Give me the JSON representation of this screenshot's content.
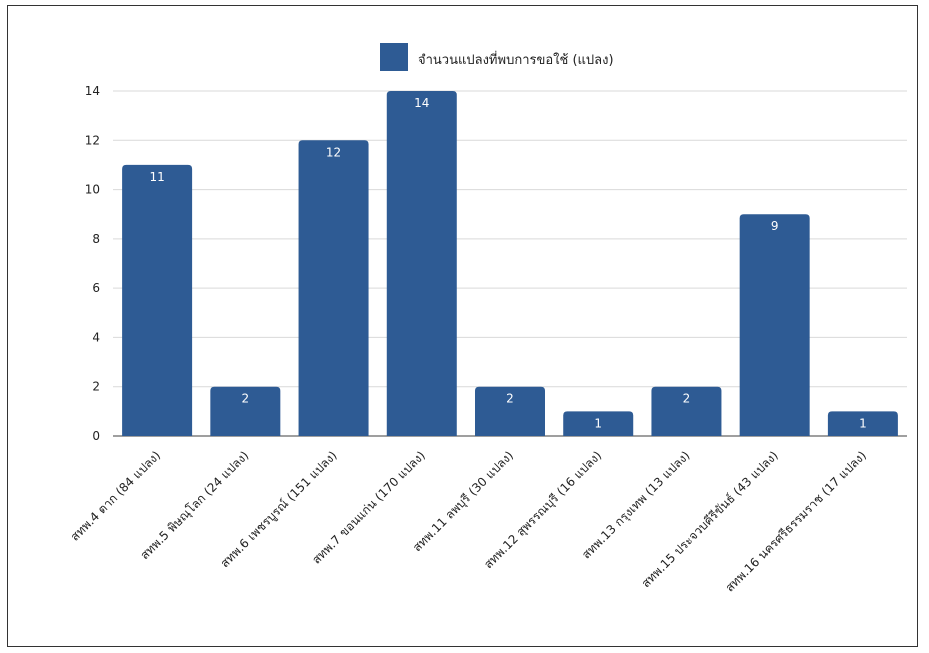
{
  "chart_data": {
    "type": "bar",
    "categories": [
      "สทพ.4 ตาก (84 แปลง)",
      "สทพ.5 พิษณุโลก (24 แปลง)",
      "สทพ.6 เพชรบูรณ์ (151 แปลง)",
      "สทพ.7 ขอนแก่น (170 แปลง)",
      "สทพ.11 ลพบุรี (30 แปลง)",
      "สทพ.12 สุพรรณบุรี (16 แปลง)",
      "สทพ.13 กรุงเทพ (13 แปลง)",
      "สทพ.15 ประจวบคีรีขันธ์ (43 แปลง)",
      "สทพ.16 นครศรีธรรมราช (17 แปลง)"
    ],
    "series": [
      {
        "name": "จำนวนแปลงที่พบการขอใช้ (แปลง)",
        "values": [
          11,
          2,
          12,
          14,
          2,
          1,
          2,
          9,
          1
        ],
        "color": "#2e5b94"
      }
    ],
    "ylim": [
      0,
      14
    ],
    "yticks": [
      0,
      2,
      4,
      6,
      8,
      10,
      12,
      14
    ],
    "grid": true,
    "legend": "top",
    "data_labels": true
  }
}
